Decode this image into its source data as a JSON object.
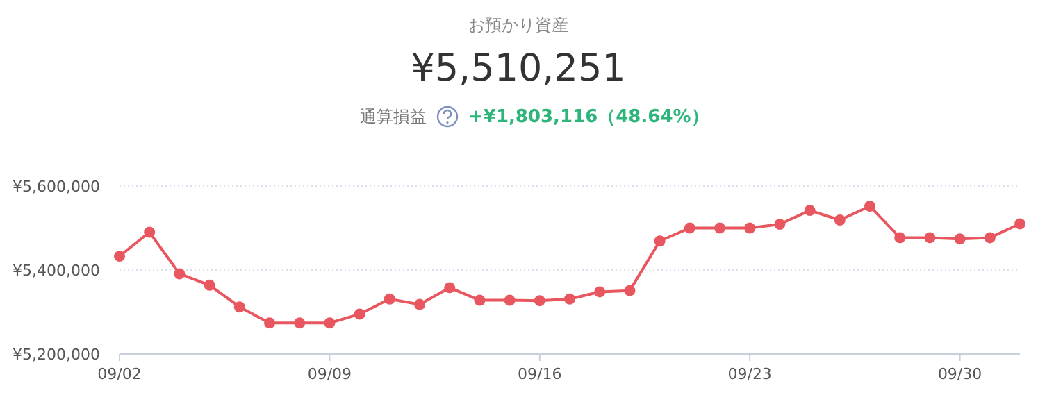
{
  "chart_data": {
    "type": "line",
    "title": "お預かり資産",
    "subtitle": "¥5,510,251",
    "annotations": [
      "通算損益",
      "+¥1,803,116（48.64%）"
    ],
    "x": [
      "--09-02",
      "--09-03",
      "--09-04",
      "--09-05",
      "--09-06",
      "--09-07",
      "--09-08",
      "--09-09",
      "--09-10",
      "--09-11",
      "--09-12",
      "--09-13",
      "--09-14",
      "--09-15",
      "--09-16",
      "--09-17",
      "--09-18",
      "--09-19",
      "--09-20",
      "--09-21",
      "--09-22",
      "--09-23",
      "--09-24",
      "--09-25",
      "--09-26",
      "--09-27",
      "--09-28",
      "--09-29",
      "--09-30",
      "--10-01",
      "--10-02"
    ],
    "series": [
      {
        "color": "#e8575f",
        "values": [
          5433000,
          5490000,
          5391000,
          5364000,
          5312000,
          5274000,
          5274000,
          5274000,
          5295000,
          5331000,
          5318000,
          5358000,
          5328000,
          5328000,
          5327000,
          5331000,
          5348000,
          5351000,
          5469000,
          5500000,
          5500000,
          5500000,
          5509000,
          5542000,
          5519000,
          5552000,
          5477000,
          5477000,
          5474000,
          5477000,
          5510000
        ]
      }
    ],
    "xlim": [
      "--09-02",
      "--10-02"
    ],
    "xticks": [
      {
        "value": "--09-02",
        "label": "09/02"
      },
      {
        "value": "--09-09",
        "label": "09/09"
      },
      {
        "value": "--09-16",
        "label": "09/16"
      },
      {
        "value": "--09-23",
        "label": "09/23"
      },
      {
        "value": "--09-30",
        "label": "09/30"
      }
    ],
    "ylim": [
      5200000,
      5600000
    ],
    "yticks": [
      {
        "value": 5200000,
        "label": "¥5,200,000"
      },
      {
        "value": 5400000,
        "label": "¥5,400,000"
      },
      {
        "value": 5600000,
        "label": "¥5,600,000"
      }
    ],
    "grid": "y",
    "marker": "circle",
    "line_style": "solid"
  }
}
